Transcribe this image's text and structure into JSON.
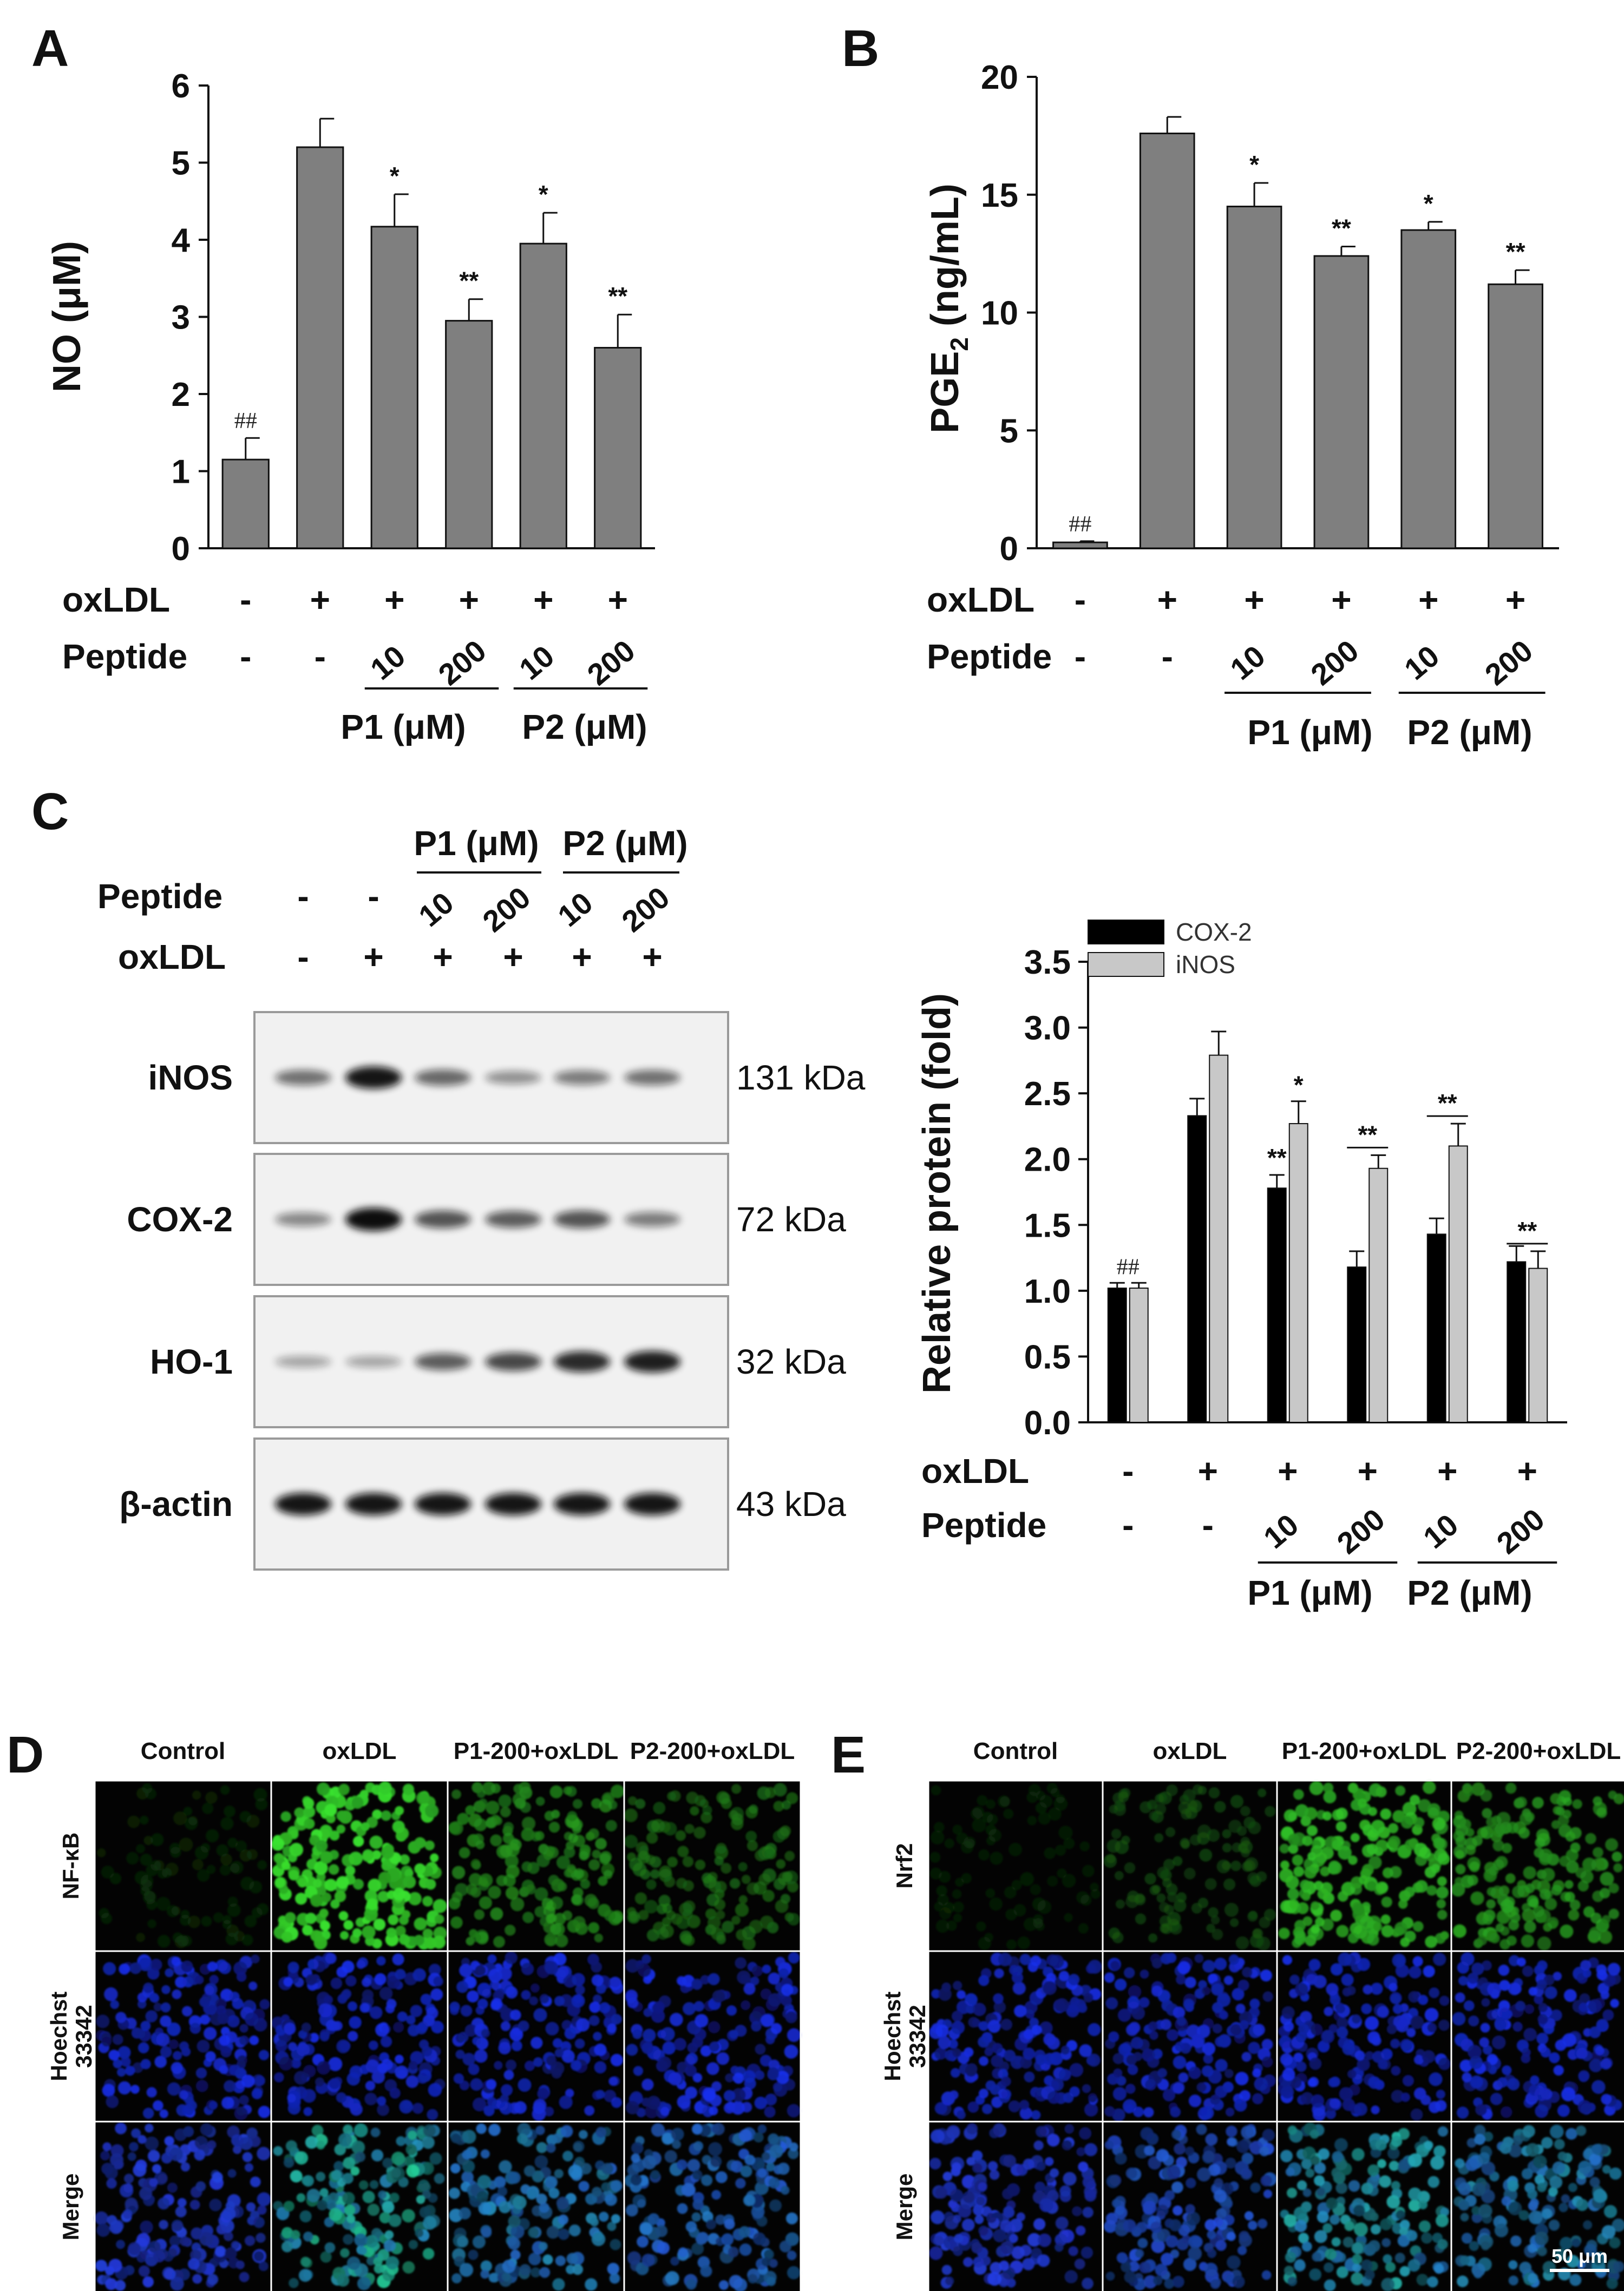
{
  "colors": {
    "bar_gray": "#7f7f7f",
    "cox2_black": "#000000",
    "inos_lightgray": "#c8c8c8",
    "nfkb_green": "#33cc33",
    "hoechst_blue": "#1a33dd"
  },
  "condition_rows": {
    "oxldl_label": "oxLDL",
    "peptide_label": "Peptide",
    "oxldl": [
      "-",
      "+",
      "+",
      "+",
      "+",
      "+"
    ],
    "peptide": [
      "-",
      "-",
      "10",
      "200",
      "10",
      "200"
    ],
    "group_p1": "P1 (μM)",
    "group_p2": "P2 (μM)"
  },
  "chart_data": [
    {
      "panel": "A",
      "type": "bar",
      "ylabel": "NO (μM)",
      "ylim": [
        0,
        6
      ],
      "yticks": [
        "0",
        "1",
        "2",
        "3",
        "4",
        "5",
        "6"
      ],
      "categories": [
        "-/-",
        "+/-",
        "+/P1 10",
        "+/P1 200",
        "+/P2 10",
        "+/P2 200"
      ],
      "values": [
        1.15,
        5.2,
        4.17,
        2.95,
        3.95,
        2.6
      ],
      "errors": [
        0.28,
        0.37,
        0.42,
        0.28,
        0.4,
        0.43
      ],
      "annotations": [
        "##",
        "",
        "*",
        "**",
        "*",
        "**"
      ]
    },
    {
      "panel": "B",
      "type": "bar",
      "ylabel": "PGE2 (ng/mL)",
      "ylabel_main": "PGE",
      "ylabel_sub": "2",
      "ylabel_tail": " (ng/mL)",
      "ylim": [
        0,
        20
      ],
      "yticks": [
        "0",
        "5",
        "10",
        "15",
        "20"
      ],
      "categories": [
        "-/-",
        "+/-",
        "+/P1 10",
        "+/P1 200",
        "+/P2 10",
        "+/P2 200"
      ],
      "values": [
        0.25,
        17.6,
        14.5,
        12.4,
        13.5,
        11.2
      ],
      "errors": [
        0.05,
        0.7,
        1.0,
        0.4,
        0.35,
        0.6
      ],
      "annotations": [
        "##",
        "",
        "*",
        "**",
        "*",
        "**"
      ]
    },
    {
      "panel": "C",
      "type": "bar",
      "ylabel": "Relative protein (fold)",
      "ylim": [
        0,
        3.5
      ],
      "yticks": [
        "0.0",
        "0.5",
        "1.0",
        "1.5",
        "2.0",
        "2.5",
        "3.0",
        "3.5"
      ],
      "categories": [
        "-/-",
        "+/-",
        "+/P1 10",
        "+/P1 200",
        "+/P2 10",
        "+/P2 200"
      ],
      "legend": [
        "COX-2",
        "iNOS"
      ],
      "series": [
        {
          "name": "COX-2",
          "values": [
            1.02,
            2.33,
            1.78,
            1.18,
            1.43,
            1.22
          ],
          "errors": [
            0.04,
            0.13,
            0.1,
            0.12,
            0.12,
            0.12
          ]
        },
        {
          "name": "iNOS",
          "values": [
            1.02,
            2.79,
            2.27,
            1.93,
            2.1,
            1.17
          ],
          "errors": [
            0.04,
            0.18,
            0.17,
            0.1,
            0.17,
            0.13
          ]
        }
      ],
      "annotations_cox2": [
        "##",
        "",
        "**",
        "",
        "",
        ""
      ],
      "annotations_inos": [
        "",
        "",
        "*",
        "**",
        "**",
        "**"
      ]
    }
  ],
  "western_blot": {
    "panel": "C",
    "p1_label": "P1 (μM)",
    "p2_label": "P2 (μM)",
    "rows": [
      {
        "protein": "iNOS",
        "kda": "131 kDa",
        "intensity": [
          0.45,
          0.9,
          0.5,
          0.3,
          0.4,
          0.45
        ]
      },
      {
        "protein": "COX-2",
        "kda": "72 kDa",
        "intensity": [
          0.35,
          0.95,
          0.6,
          0.55,
          0.6,
          0.4
        ]
      },
      {
        "protein": "HO-1",
        "kda": "32 kDa",
        "intensity": [
          0.2,
          0.2,
          0.55,
          0.65,
          0.8,
          0.85
        ]
      },
      {
        "protein": "β-actin",
        "kda": "43 kDa",
        "intensity": [
          0.9,
          0.9,
          0.9,
          0.9,
          0.9,
          0.9
        ]
      }
    ]
  },
  "microscopy_d": {
    "panel": "D",
    "columns": [
      "Control",
      "oxLDL",
      "P1-200+oxLDL",
      "P2-200+oxLDL"
    ],
    "rows": [
      "NF-κB",
      "Hoechst 33342",
      "Merge"
    ],
    "row_first": [
      "NF-κB",
      "Hoechst",
      "Merge"
    ],
    "row_second": [
      "",
      "33342",
      ""
    ],
    "green_intensity": [
      0.12,
      0.95,
      0.6,
      0.45
    ]
  },
  "microscopy_e": {
    "panel": "E",
    "columns": [
      "Control",
      "oxLDL",
      "P1-200+oxLDL",
      "P2-200+oxLDL"
    ],
    "rows": [
      "Nrf2",
      "Hoechst 33342",
      "Merge"
    ],
    "row_first": [
      "Nrf2",
      "Hoechst",
      "Merge"
    ],
    "row_second": [
      "",
      "33342",
      ""
    ],
    "green_intensity": [
      0.1,
      0.3,
      0.8,
      0.65
    ],
    "scale_bar": "50 μm"
  }
}
